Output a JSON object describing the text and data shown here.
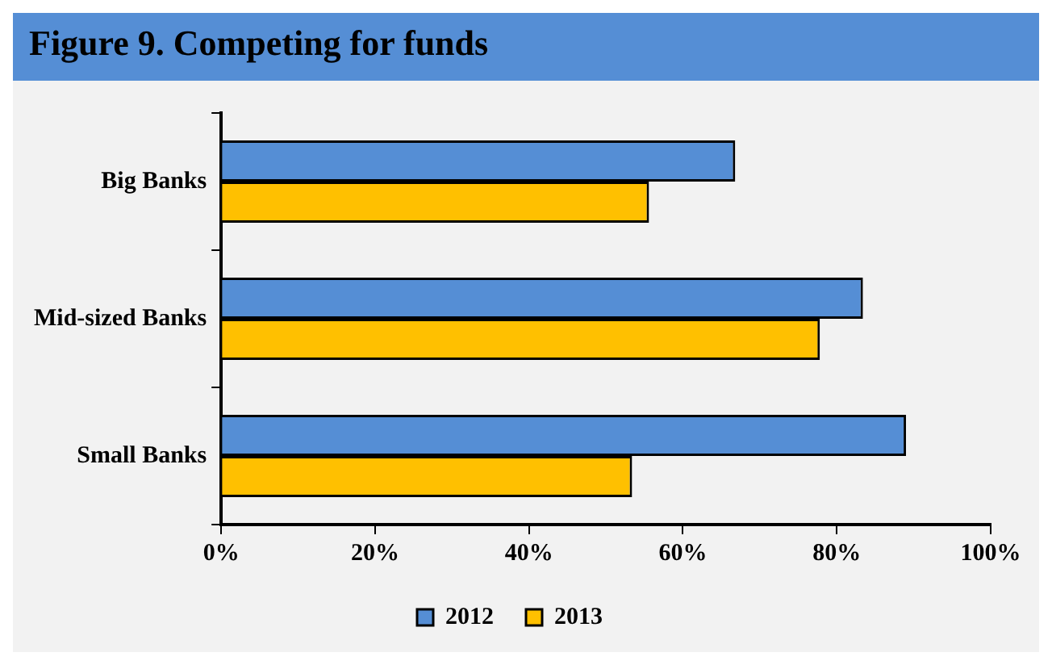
{
  "chart_data": {
    "type": "bar",
    "orientation": "horizontal",
    "title": "Figure 9.  Competing for funds",
    "categories": [
      "Big Banks",
      "Mid-sized Banks",
      "Small Banks"
    ],
    "series": [
      {
        "name": "2012",
        "color": "#558ed5",
        "values": [
          66.8,
          83.4,
          89.0
        ]
      },
      {
        "name": "2013",
        "color": "#ffc000",
        "values": [
          55.6,
          77.8,
          53.4
        ]
      }
    ],
    "xlim": [
      0,
      100
    ],
    "xticks": [
      {
        "value": 0,
        "label": "0%"
      },
      {
        "value": 20,
        "label": "20%"
      },
      {
        "value": 40,
        "label": "40%"
      },
      {
        "value": 60,
        "label": "60%"
      },
      {
        "value": 80,
        "label": "80%"
      },
      {
        "value": 100,
        "label": "100%"
      }
    ],
    "grid": false,
    "legend": "bottom"
  }
}
